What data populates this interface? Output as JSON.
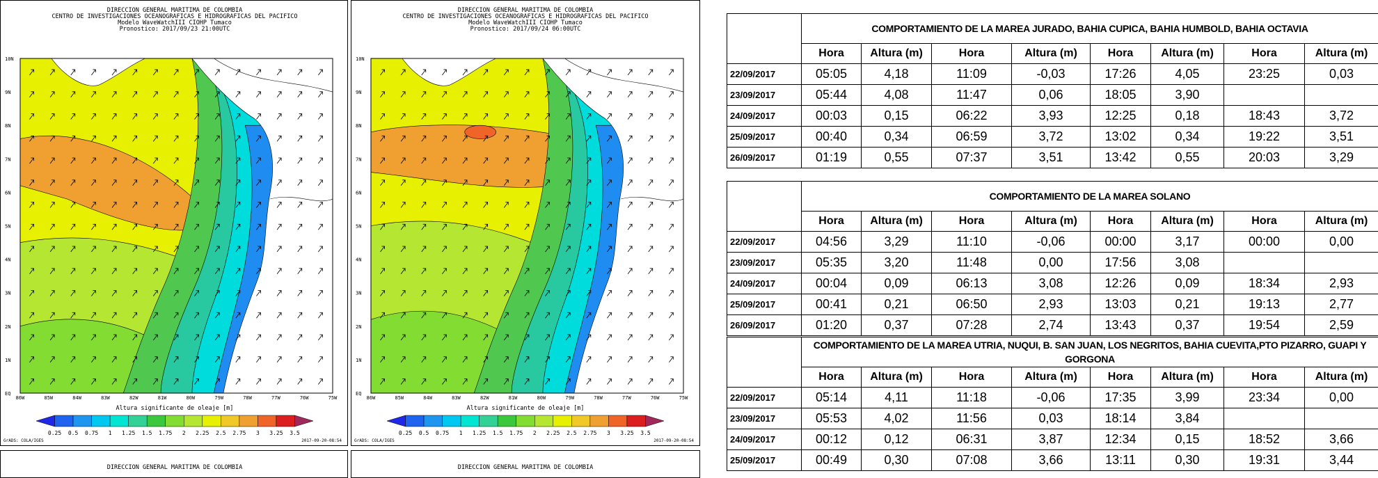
{
  "maps": [
    {
      "header": [
        "DIRECCION GENERAL MARITIMA DE COLOMBIA",
        "CENTRO DE INVESTIGACIONES OCEANOGRAFICAS E HIDROGRAFICAS DEL PACIFICO",
        "Modelo WaveWatchIII CIOHP Tumaco",
        "Pronostico: 2017/09/23 21:00UTC"
      ]
    },
    {
      "header": [
        "DIRECCION GENERAL MARITIMA DE COLOMBIA",
        "CENTRO DE INVESTIGACIONES OCEANOGRAFICAS E HIDROGRAFICAS DEL PACIFICO",
        "Modelo WaveWatchIII CIOHP Tumaco",
        "Pronostico: 2017/09/24 06:00UTC"
      ]
    }
  ],
  "map_axes": {
    "lat": [
      "10N",
      "9N",
      "8N",
      "7N",
      "6N",
      "5N",
      "4N",
      "3N",
      "2N",
      "1N",
      "EQ"
    ],
    "lon": [
      "86W",
      "85W",
      "84W",
      "83W",
      "82W",
      "81W",
      "80W",
      "79W",
      "78W",
      "77W",
      "76W",
      "75W"
    ],
    "colorbar_title": "Altura significante de oleaje [m]",
    "colorbar_labels": [
      "0.25",
      "0.5",
      "0.75",
      "1",
      "1.25",
      "1.5",
      "1.75",
      "2",
      "2.25",
      "2.5",
      "2.75",
      "3",
      "3.25",
      "3.5"
    ],
    "footer_left": "GrADS: COLA/IGES",
    "footer_right": "2017-09-20-08:54"
  },
  "lower_maps": [
    {
      "header": "DIRECCION GENERAL MARITIMA DE COLOMBIA"
    },
    {
      "header": "DIRECCION GENERAL MARITIMA DE COLOMBIA"
    }
  ],
  "tables": [
    {
      "title": "COMPORTAMIENTO DE LA MAREA JURADO, BAHIA CUPICA, BAHIA HUMBOLD, BAHIA OCTAVIA",
      "headers": [
        "Hora",
        "Altura (m)",
        "Hora",
        "Altura (m)",
        "Hora",
        "Altura (m)",
        "Hora",
        "Altura (m)"
      ],
      "rows": [
        [
          "22/09/2017",
          "05:05",
          "4,18",
          "11:09",
          "-0,03",
          "17:26",
          "4,05",
          "23:25",
          "0,03"
        ],
        [
          "23/09/2017",
          "05:44",
          "4,08",
          "11:47",
          "0,06",
          "18:05",
          "3,90"
        ],
        [
          "24/09/2017",
          "00:03",
          "0,15",
          "06:22",
          "3,93",
          "12:25",
          "0,18",
          "18:43",
          "3,72"
        ],
        [
          "25/09/2017",
          "00:40",
          "0,34",
          "06:59",
          "3,72",
          "13:02",
          "0,34",
          "19:22",
          "3,51"
        ],
        [
          "26/09/2017",
          "01:19",
          "0,55",
          "07:37",
          "3,51",
          "13:42",
          "0,55",
          "20:03",
          "3,29"
        ]
      ]
    },
    {
      "title": "COMPORTAMIENTO DE LA MAREA SOLANO",
      "headers": [
        "Hora",
        "Altura (m)",
        "Hora",
        "Altura (m)",
        "Hora",
        "Altura (m)",
        "Hora",
        "Altura (m)"
      ],
      "rows": [
        [
          "22/09/2017",
          "04:56",
          "3,29",
          "11:10",
          "-0,06",
          "00:00",
          "3,17",
          "00:00",
          "0,00"
        ],
        [
          "23/09/2017",
          "05:35",
          "3,20",
          "11:48",
          "0,00",
          "17:56",
          "3,08"
        ],
        [
          "24/09/2017",
          "00:04",
          "0,09",
          "06:13",
          "3,08",
          "12:26",
          "0,09",
          "18:34",
          "2,93"
        ],
        [
          "25/09/2017",
          "00:41",
          "0,21",
          "06:50",
          "2,93",
          "13:03",
          "0,21",
          "19:13",
          "2,77"
        ],
        [
          "26/09/2017",
          "01:20",
          "0,37",
          "07:28",
          "2,74",
          "13:43",
          "0,37",
          "19:54",
          "2,59"
        ]
      ]
    },
    {
      "title": "COMPORTAMIENTO DE LA MAREA UTRIA, NUQUI, B. SAN JUAN, LOS NEGRITOS, BAHIA CUEVITA,PTO PIZARRO, GUAPI Y GORGONA",
      "headers": [
        "Hora",
        "Altura (m)",
        "Hora",
        "Altura (m)",
        "Hora",
        "Altura (m)",
        "Hora",
        "Altura (m)"
      ],
      "rows": [
        [
          "22/09/2017",
          "05:14",
          "4,11",
          "11:18",
          "-0,06",
          "17:35",
          "3,99",
          "23:34",
          "0,00"
        ],
        [
          "23/09/2017",
          "05:53",
          "4,02",
          "11:56",
          "0,03",
          "18:14",
          "3,84"
        ],
        [
          "24/09/2017",
          "00:12",
          "0,12",
          "06:31",
          "3,87",
          "12:34",
          "0,15",
          "18:52",
          "3,66"
        ],
        [
          "25/09/2017",
          "00:49",
          "0,30",
          "07:08",
          "3,66",
          "13:11",
          "0,30",
          "19:31",
          "3,44"
        ]
      ]
    }
  ]
}
